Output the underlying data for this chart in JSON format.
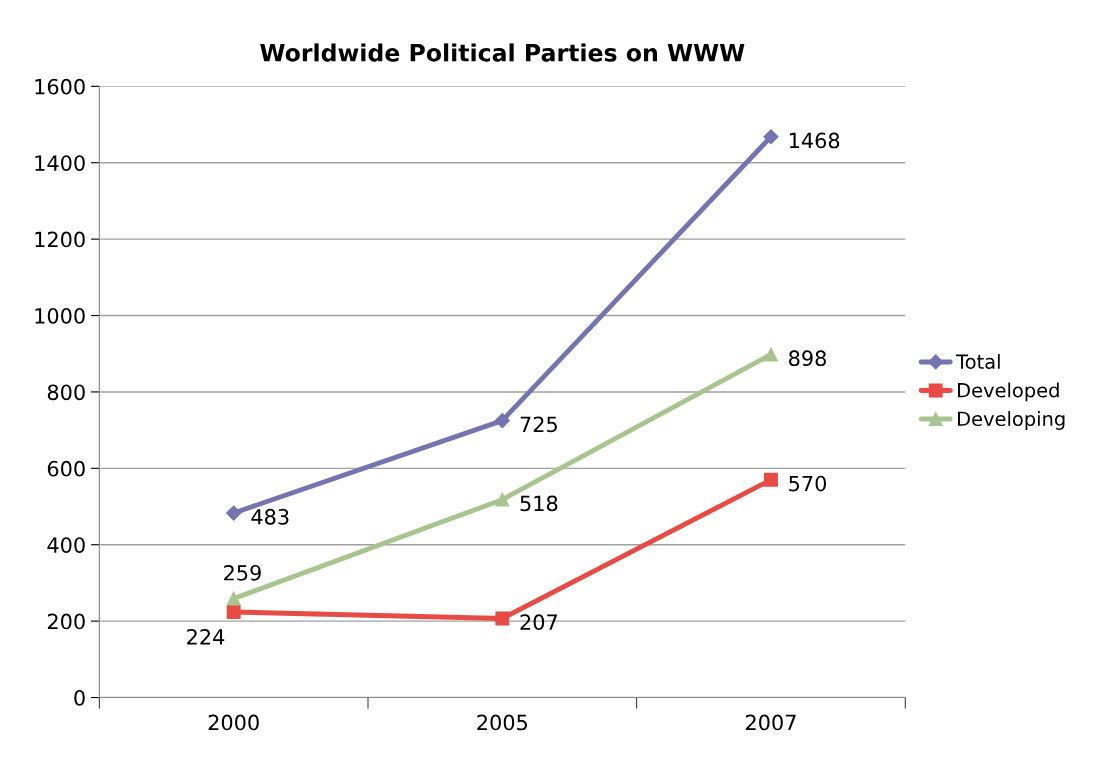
{
  "chart_data": {
    "type": "line",
    "title": "Worldwide Political Parties on WWW",
    "categories": [
      "2000",
      "2005",
      "2007"
    ],
    "series": [
      {
        "name": "Total",
        "color": "#7474b0",
        "marker": "diamond",
        "values": [
          483,
          725,
          1468
        ]
      },
      {
        "name": "Developed",
        "color": "#e84a44",
        "marker": "square",
        "values": [
          224,
          207,
          570
        ]
      },
      {
        "name": "Developing",
        "color": "#a9c58f",
        "marker": "triangle",
        "values": [
          259,
          518,
          898
        ]
      }
    ],
    "ylim": [
      0,
      1600
    ],
    "yticks": [
      0,
      200,
      400,
      600,
      800,
      1000,
      1200,
      1400,
      1600
    ],
    "grid": "y",
    "legend": "right",
    "data_labels": true,
    "line_style": "solid"
  }
}
